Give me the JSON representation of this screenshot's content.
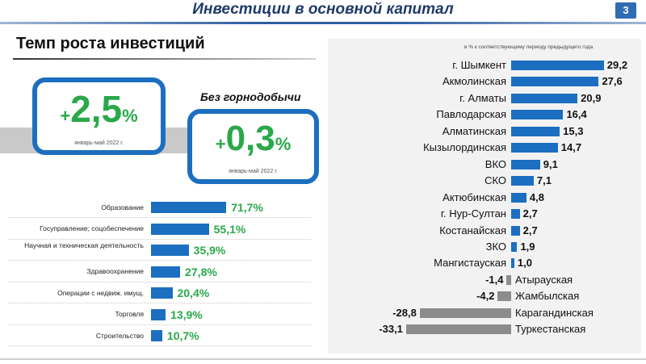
{
  "header": {
    "title": "Инвестиции в основной капитал",
    "page_number": "3"
  },
  "section_heading": "Темп роста инвестиций",
  "kpi_main": {
    "sign": "+",
    "value": "2,5",
    "unit": "%",
    "caption": "январь-май 2022 г."
  },
  "kpi_sub": {
    "label": "Без горнодобычи",
    "sign": "+",
    "value": "0,3",
    "unit": "%",
    "caption": "январь-май 2022 г."
  },
  "colors": {
    "bar_blue": "#1c6fc0",
    "bar_gray": "#8c8c8c",
    "value_green": "#2aa84a",
    "title_navy": "#1f3a68"
  },
  "chart_data": [
    {
      "type": "bar",
      "orientation": "horizontal",
      "categories": [
        "Образование",
        "Госуправление; соцобеспечение",
        "Научная и техническая деятельность",
        "Здравоохранение",
        "Операции с недвиж. имущ.",
        "Торговля",
        "Строительство"
      ],
      "value_labels": [
        "71,7%",
        "55,1%",
        "35,9%",
        "27,8%",
        "20,4%",
        "13,9%",
        "10,7%"
      ],
      "values": [
        71.7,
        55.1,
        35.9,
        27.8,
        20.4,
        13.9,
        10.7
      ]
    },
    {
      "type": "bar",
      "orientation": "horizontal",
      "title": "в % к соответствующему периоду предыдущего года",
      "categories": [
        "г. Шымкент",
        "Акмолинская",
        "г. Алматы",
        "Павлодарская",
        "Алматинская",
        "Кызылординская",
        "ВКО",
        "СКО",
        "Актюбинская",
        "г. Нур-Султан",
        "Костанайская",
        "ЗКО",
        "Мангистауская",
        "Атырауская",
        "Жамбылская",
        "Карагандинская",
        "Туркестанская"
      ],
      "value_labels": [
        "29,2",
        "27,6",
        "20,9",
        "16,4",
        "15,3",
        "14,7",
        "9,1",
        "7,1",
        "4,8",
        "2,7",
        "2,7",
        "1,9",
        "1,0",
        "-1,4",
        "-4,2",
        "-28,8",
        "-33,1"
      ],
      "values": [
        29.2,
        27.6,
        20.9,
        16.4,
        15.3,
        14.7,
        9.1,
        7.1,
        4.8,
        2.7,
        2.7,
        1.9,
        1.0,
        -1.4,
        -4.2,
        -28.8,
        -33.1
      ]
    }
  ]
}
